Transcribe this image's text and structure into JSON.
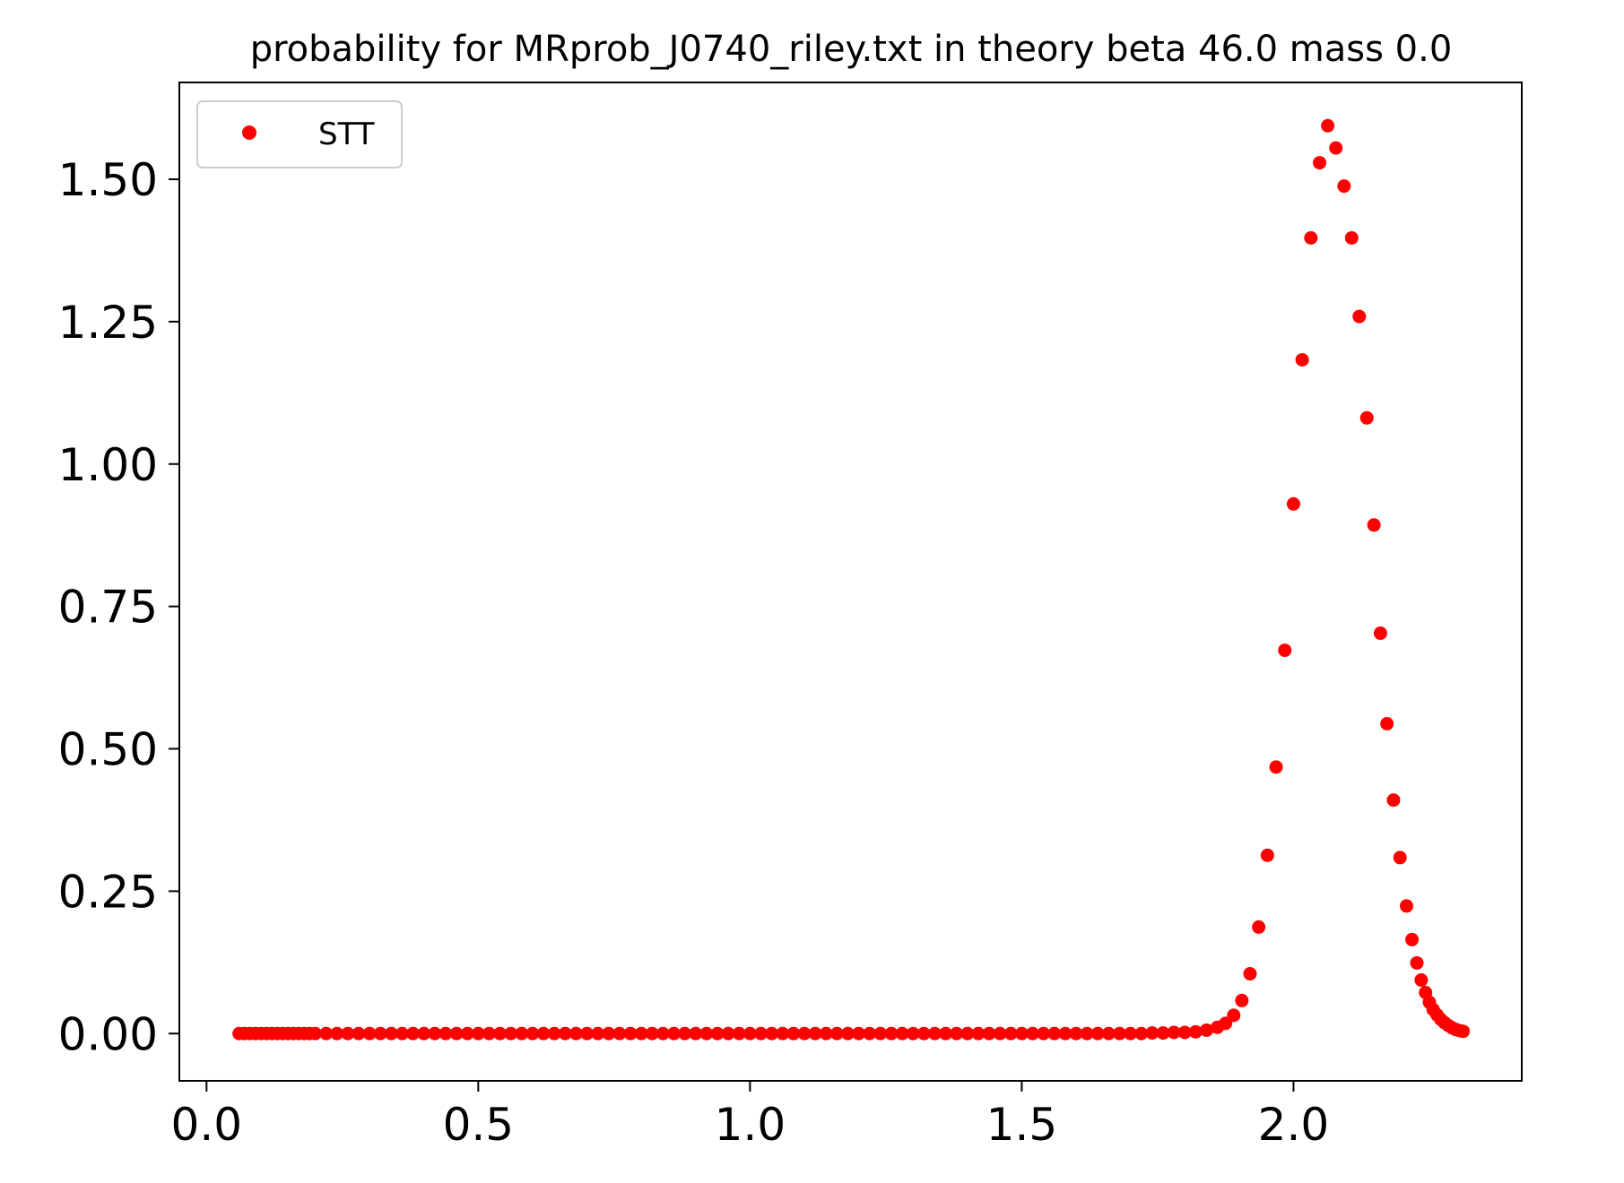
{
  "chart_data": {
    "type": "scatter",
    "title": "probability for MRprob_J0740_riley.txt in theory beta 46.0 mass 0.0",
    "xlabel": "",
    "ylabel": "",
    "xlim": [
      -0.05,
      2.42
    ],
    "ylim": [
      -0.083,
      1.67
    ],
    "xticks": [
      0.0,
      0.5,
      1.0,
      1.5,
      2.0
    ],
    "xtick_labels": [
      "0.0",
      "0.5",
      "1.0",
      "1.5",
      "2.0"
    ],
    "yticks": [
      0.0,
      0.25,
      0.5,
      0.75,
      1.0,
      1.25,
      1.5
    ],
    "ytick_labels": [
      "0.00",
      "0.25",
      "0.50",
      "0.75",
      "1.00",
      "1.25",
      "1.50"
    ],
    "grid": false,
    "legend_position": "upper-left",
    "series": [
      {
        "name": "STT",
        "color": "#ff0000",
        "marker": "circle",
        "points": [
          [
            0.06,
            0.0
          ],
          [
            0.07,
            0.0
          ],
          [
            0.08,
            0.0
          ],
          [
            0.09,
            0.0
          ],
          [
            0.1,
            0.0
          ],
          [
            0.11,
            0.0
          ],
          [
            0.12,
            0.0
          ],
          [
            0.13,
            0.0
          ],
          [
            0.14,
            0.0
          ],
          [
            0.15,
            0.0
          ],
          [
            0.16,
            0.0
          ],
          [
            0.17,
            0.0
          ],
          [
            0.18,
            0.0
          ],
          [
            0.19,
            0.0
          ],
          [
            0.2,
            0.0
          ],
          [
            0.22,
            0.0
          ],
          [
            0.24,
            0.0
          ],
          [
            0.26,
            0.0
          ],
          [
            0.28,
            0.0
          ],
          [
            0.3,
            0.0
          ],
          [
            0.32,
            0.0
          ],
          [
            0.34,
            0.0
          ],
          [
            0.36,
            0.0
          ],
          [
            0.38,
            0.0
          ],
          [
            0.4,
            0.0
          ],
          [
            0.42,
            0.0
          ],
          [
            0.44,
            0.0
          ],
          [
            0.46,
            0.0
          ],
          [
            0.48,
            0.0
          ],
          [
            0.5,
            0.0
          ],
          [
            0.52,
            0.0
          ],
          [
            0.54,
            0.0
          ],
          [
            0.56,
            0.0
          ],
          [
            0.58,
            0.0
          ],
          [
            0.6,
            0.0
          ],
          [
            0.62,
            0.0
          ],
          [
            0.64,
            0.0
          ],
          [
            0.66,
            0.0
          ],
          [
            0.68,
            0.0
          ],
          [
            0.7,
            0.0
          ],
          [
            0.72,
            0.0
          ],
          [
            0.74,
            0.0
          ],
          [
            0.76,
            0.0
          ],
          [
            0.78,
            0.0
          ],
          [
            0.8,
            0.0
          ],
          [
            0.82,
            0.0
          ],
          [
            0.84,
            0.0
          ],
          [
            0.86,
            0.0
          ],
          [
            0.88,
            0.0
          ],
          [
            0.9,
            0.0
          ],
          [
            0.92,
            0.0
          ],
          [
            0.94,
            0.0
          ],
          [
            0.96,
            0.0
          ],
          [
            0.98,
            0.0
          ],
          [
            1.0,
            0.0
          ],
          [
            1.02,
            0.0
          ],
          [
            1.04,
            0.0
          ],
          [
            1.06,
            0.0
          ],
          [
            1.08,
            0.0
          ],
          [
            1.1,
            0.0
          ],
          [
            1.12,
            0.0
          ],
          [
            1.14,
            0.0
          ],
          [
            1.16,
            0.0
          ],
          [
            1.18,
            0.0
          ],
          [
            1.2,
            0.0
          ],
          [
            1.22,
            0.0
          ],
          [
            1.24,
            0.0
          ],
          [
            1.26,
            0.0
          ],
          [
            1.28,
            0.0
          ],
          [
            1.3,
            0.0
          ],
          [
            1.32,
            0.0
          ],
          [
            1.34,
            0.0
          ],
          [
            1.36,
            0.0
          ],
          [
            1.38,
            0.0
          ],
          [
            1.4,
            0.0
          ],
          [
            1.42,
            0.0
          ],
          [
            1.44,
            0.0
          ],
          [
            1.46,
            0.0
          ],
          [
            1.48,
            0.0
          ],
          [
            1.5,
            0.0
          ],
          [
            1.52,
            0.0
          ],
          [
            1.54,
            0.0
          ],
          [
            1.56,
            0.0
          ],
          [
            1.58,
            0.0
          ],
          [
            1.6,
            0.0
          ],
          [
            1.62,
            0.0
          ],
          [
            1.64,
            0.0
          ],
          [
            1.66,
            0.0
          ],
          [
            1.68,
            0.0
          ],
          [
            1.7,
            0.0
          ],
          [
            1.72,
            0.0
          ],
          [
            1.74,
            0.001
          ],
          [
            1.76,
            0.001
          ],
          [
            1.78,
            0.002
          ],
          [
            1.8,
            0.002
          ],
          [
            1.82,
            0.003
          ],
          [
            1.84,
            0.006
          ],
          [
            1.86,
            0.011
          ],
          [
            1.875,
            0.018
          ],
          [
            1.89,
            0.032
          ],
          [
            1.905,
            0.058
          ],
          [
            1.92,
            0.105
          ],
          [
            1.936,
            0.187
          ],
          [
            1.952,
            0.313
          ],
          [
            1.968,
            0.468
          ],
          [
            1.984,
            0.673
          ],
          [
            2.0,
            0.93
          ],
          [
            2.016,
            1.183
          ],
          [
            2.032,
            1.397
          ],
          [
            2.048,
            1.529
          ],
          [
            2.063,
            1.594
          ],
          [
            2.078,
            1.555
          ],
          [
            2.093,
            1.488
          ],
          [
            2.107,
            1.397
          ],
          [
            2.121,
            1.259
          ],
          [
            2.135,
            1.081
          ],
          [
            2.148,
            0.893
          ],
          [
            2.16,
            0.703
          ],
          [
            2.172,
            0.544
          ],
          [
            2.184,
            0.41
          ],
          [
            2.196,
            0.309
          ],
          [
            2.208,
            0.224
          ],
          [
            2.218,
            0.165
          ],
          [
            2.227,
            0.124
          ],
          [
            2.235,
            0.094
          ],
          [
            2.243,
            0.072
          ],
          [
            2.25,
            0.055
          ],
          [
            2.257,
            0.042
          ],
          [
            2.264,
            0.033
          ],
          [
            2.271,
            0.025
          ],
          [
            2.278,
            0.019
          ],
          [
            2.285,
            0.014
          ],
          [
            2.292,
            0.01
          ],
          [
            2.299,
            0.007
          ],
          [
            2.306,
            0.005
          ],
          [
            2.312,
            0.004
          ]
        ]
      }
    ]
  }
}
